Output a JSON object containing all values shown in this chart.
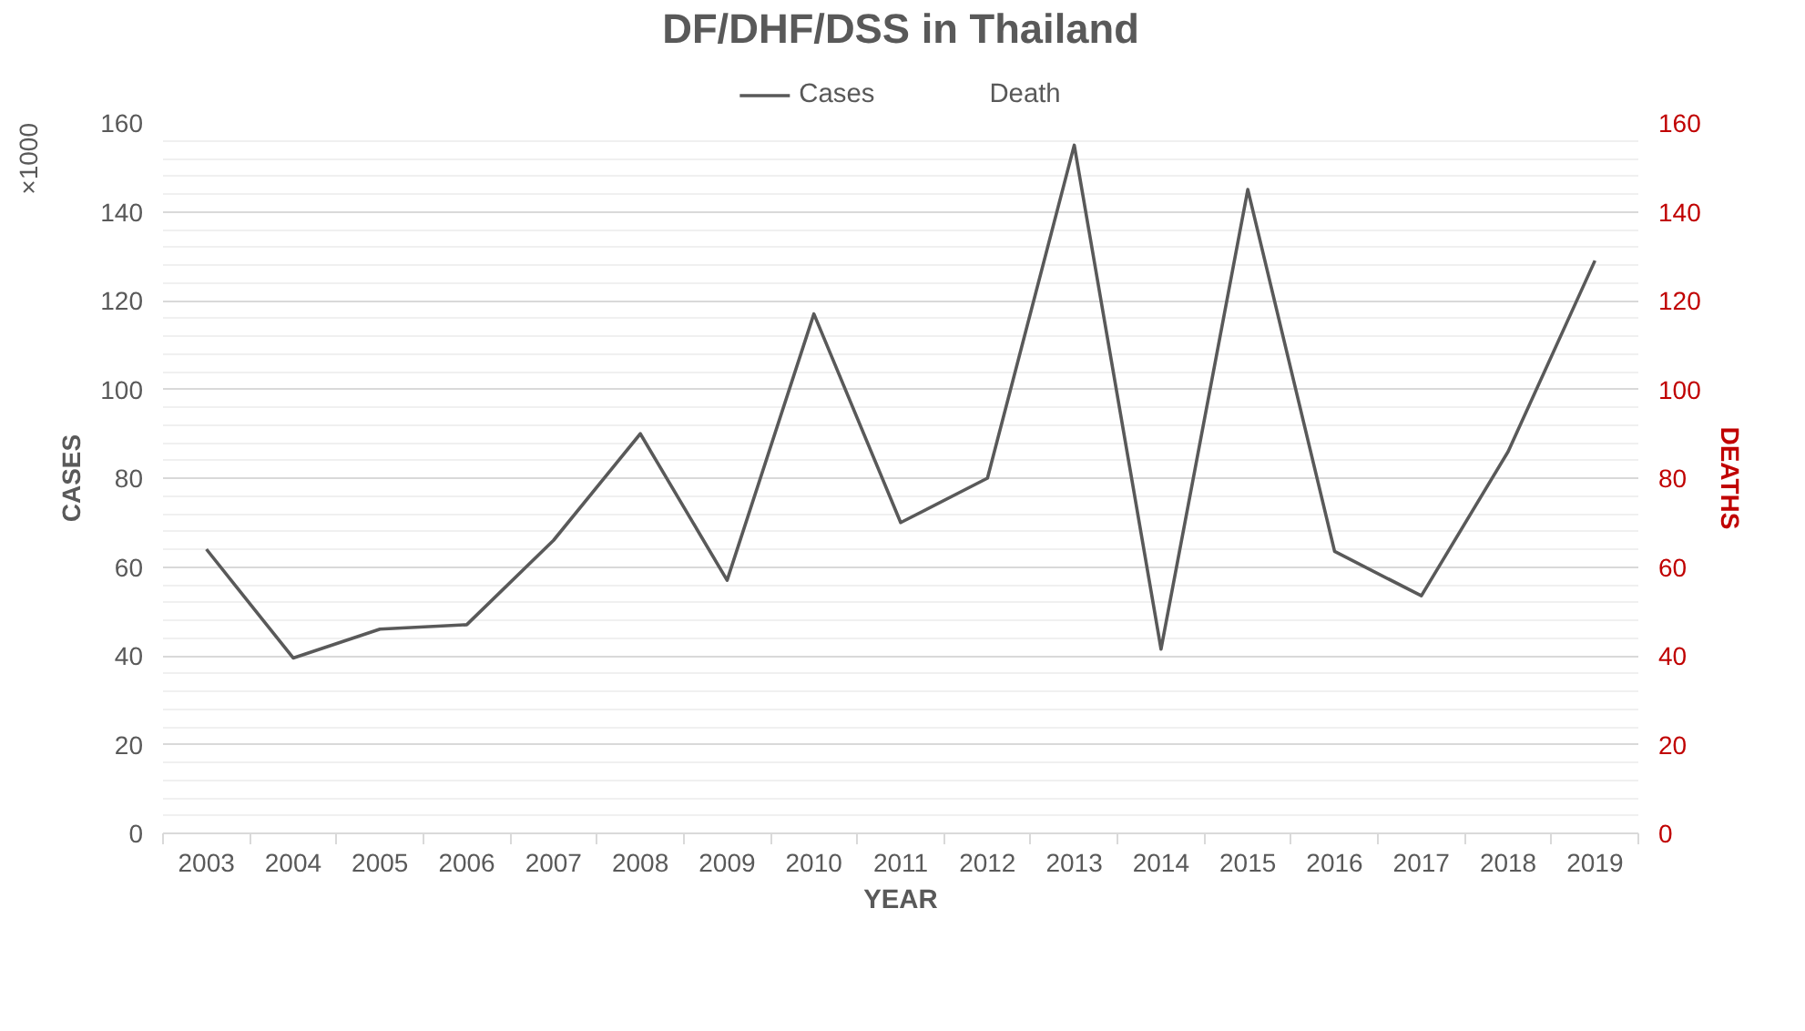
{
  "chart_data": {
    "type": "line",
    "title": "DF/DHF/DSS in Thailand",
    "xlabel": "YEAR",
    "ylabel": "CASES",
    "y2label": "DEATHS",
    "annotations": [
      "×1000"
    ],
    "categories": [
      "2003",
      "2004",
      "2005",
      "2006",
      "2007",
      "2008",
      "2009",
      "2010",
      "2011",
      "2012",
      "2013",
      "2014",
      "2015",
      "2016",
      "2017",
      "2018",
      "2019"
    ],
    "series": [
      {
        "name": "Cases",
        "color": "#595959",
        "values": [
          64,
          39.5,
          46,
          47,
          66,
          90,
          57,
          117,
          70,
          80,
          155,
          41.5,
          145,
          63.5,
          53.5,
          86,
          129
        ]
      },
      {
        "name": "Death",
        "values": [
          null,
          null,
          null,
          null,
          null,
          null,
          null,
          null,
          null,
          null,
          null,
          null,
          null,
          null,
          null,
          null,
          null
        ]
      }
    ],
    "ylim": [
      0,
      160
    ],
    "yticks": [
      0,
      20,
      40,
      60,
      80,
      100,
      120,
      140,
      160
    ],
    "y2lim": [
      0,
      160
    ],
    "y2ticks": [
      0,
      20,
      40,
      60,
      80,
      100,
      120,
      140,
      160
    ],
    "grid": "y",
    "legend": "top",
    "marker": "none",
    "line_style": "solid"
  }
}
